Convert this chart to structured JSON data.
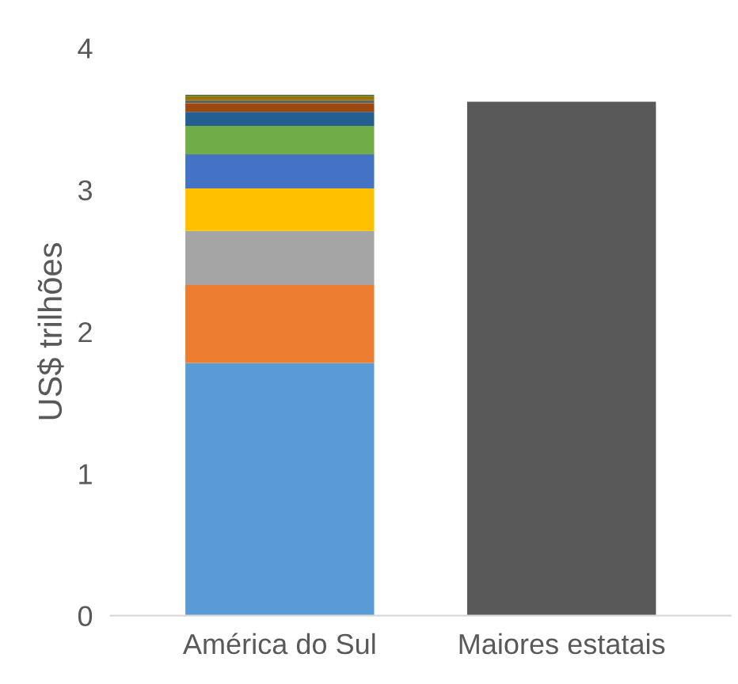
{
  "chart_data": {
    "type": "bar",
    "stacked": true,
    "ylabel": "US$ trilhões",
    "categories": [
      "América do Sul",
      "Maiores estatais"
    ],
    "series": [
      {
        "color": "#5b9bd5",
        "values": [
          1.78,
          null
        ]
      },
      {
        "color": "#ed7d31",
        "values": [
          0.55,
          null
        ]
      },
      {
        "color": "#a5a5a5",
        "values": [
          0.38,
          null
        ]
      },
      {
        "color": "#ffc000",
        "values": [
          0.3,
          null
        ]
      },
      {
        "color": "#4472c4",
        "values": [
          0.24,
          null
        ]
      },
      {
        "color": "#70ad47",
        "values": [
          0.2,
          null
        ]
      },
      {
        "color": "#255e91",
        "values": [
          0.1,
          null
        ]
      },
      {
        "color": "#9e480e",
        "values": [
          0.06,
          null
        ]
      },
      {
        "color": "#636363",
        "values": [
          0.02,
          null
        ]
      },
      {
        "color": "#997300",
        "values": [
          0.03,
          null
        ]
      },
      {
        "color": "#43682b",
        "values": [
          0.01,
          null
        ]
      },
      {
        "color": "#595959",
        "values": [
          null,
          3.62
        ]
      }
    ],
    "ylim": [
      0,
      4
    ],
    "yticks": [
      0,
      1,
      2,
      3,
      4
    ]
  }
}
